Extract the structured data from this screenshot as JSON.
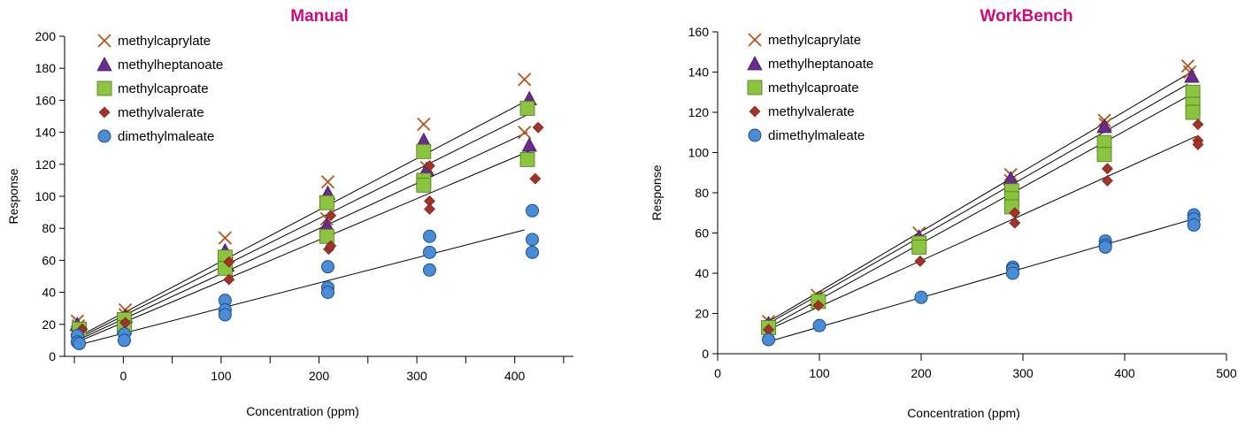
{
  "chart_data": [
    {
      "type": "scatter",
      "title": "Manual",
      "xlabel": "Concentration (ppm)",
      "ylabel": "Response",
      "xlim": [
        -60,
        460
      ],
      "ylim": [
        0,
        200
      ],
      "xticks": [
        0,
        100,
        200,
        300,
        400
      ],
      "yticks": [
        0,
        20,
        40,
        60,
        80,
        100,
        120,
        140,
        160,
        180,
        200
      ],
      "grid": false,
      "legend": "top-left",
      "series": [
        {
          "name": "methylcaprylate",
          "marker": "x",
          "color": "#b5541c",
          "points": [
            [
              -47,
              22
            ],
            [
              -46,
              19
            ],
            [
              2,
              29
            ],
            [
              2,
              26
            ],
            [
              104,
              74
            ],
            [
              106,
              58
            ],
            [
              209,
              109
            ],
            [
              208,
              86
            ],
            [
              307,
              145
            ],
            [
              310,
              118
            ],
            [
              410,
              173
            ],
            [
              410,
              140
            ]
          ]
        },
        {
          "name": "methylheptanoate",
          "marker": "triangle",
          "color": "#6a2d8f",
          "points": [
            [
              -47,
              20
            ],
            [
              2,
              25
            ],
            [
              104,
              66
            ],
            [
              106,
              57
            ],
            [
              209,
              102
            ],
            [
              208,
              82
            ],
            [
              307,
              135
            ],
            [
              310,
              117
            ],
            [
              415,
              161
            ],
            [
              415,
              132
            ]
          ]
        },
        {
          "name": "methylcaproate",
          "marker": "square",
          "color": "#8cc43f",
          "points": [
            [
              -45,
              17
            ],
            [
              1,
              23
            ],
            [
              1,
              18
            ],
            [
              104,
              62
            ],
            [
              104,
              55
            ],
            [
              208,
              96
            ],
            [
              208,
              75
            ],
            [
              307,
              128
            ],
            [
              307,
              110
            ],
            [
              307,
              107
            ],
            [
              413,
              155
            ],
            [
              413,
              123
            ]
          ]
        },
        {
          "name": "methylvalerate",
          "marker": "diamond",
          "color": "#a33228",
          "points": [
            [
              -42,
              17
            ],
            [
              2,
              21
            ],
            [
              108,
              59
            ],
            [
              108,
              48
            ],
            [
              212,
              88
            ],
            [
              210,
              67
            ],
            [
              212,
              69
            ],
            [
              313,
              119
            ],
            [
              313,
              97
            ],
            [
              313,
              92
            ],
            [
              424,
              143
            ],
            [
              421,
              111
            ]
          ]
        },
        {
          "name": "dimethylmaleate",
          "marker": "circle",
          "color": "#4a8dd6",
          "points": [
            [
              -47,
              13
            ],
            [
              -47,
              9
            ],
            [
              -45,
              8
            ],
            [
              1,
              14
            ],
            [
              1,
              10
            ],
            [
              104,
              35
            ],
            [
              104,
              29
            ],
            [
              104,
              26
            ],
            [
              209,
              56
            ],
            [
              209,
              43
            ],
            [
              209,
              40
            ],
            [
              313,
              75
            ],
            [
              313,
              65
            ],
            [
              313,
              54
            ],
            [
              418,
              91
            ],
            [
              418,
              73
            ],
            [
              418,
              65
            ]
          ]
        }
      ],
      "trendlines": [
        {
          "series": "methylcaprylate",
          "from": [
            -47,
            12
          ],
          "to": [
            410,
            159
          ]
        },
        {
          "series": "methylheptanoate",
          "from": [
            -47,
            11
          ],
          "to": [
            413,
            151
          ]
        },
        {
          "series": "methylcaproate",
          "from": [
            -47,
            10
          ],
          "to": [
            413,
            140
          ]
        },
        {
          "series": "methylvalerate",
          "from": [
            -47,
            9
          ],
          "to": [
            418,
            129
          ]
        },
        {
          "series": "dimethylmaleate",
          "from": [
            -47,
            7
          ],
          "to": [
            410,
            79
          ]
        }
      ]
    },
    {
      "type": "scatter",
      "title": "WorkBench",
      "xlabel": "Concentration (ppm)",
      "ylabel": "Response",
      "xlim": [
        0,
        500
      ],
      "ylim": [
        0,
        160
      ],
      "xticks": [
        0,
        100,
        200,
        300,
        400,
        500
      ],
      "yticks": [
        0,
        20,
        40,
        60,
        80,
        100,
        120,
        140,
        160
      ],
      "grid": false,
      "legend": "top-left",
      "series": [
        {
          "name": "methylcaprylate",
          "marker": "x",
          "color": "#b5541c",
          "points": [
            [
              50,
              16
            ],
            [
              98,
              29
            ],
            [
              198,
              60
            ],
            [
              288,
              89
            ],
            [
              288,
              86
            ],
            [
              380,
              116
            ],
            [
              381,
              114
            ],
            [
              462,
              143
            ],
            [
              464,
              140
            ]
          ]
        },
        {
          "name": "methylheptanoate",
          "marker": "triangle",
          "color": "#6a2d8f",
          "points": [
            [
              50,
              15
            ],
            [
              98,
              27
            ],
            [
              198,
              58
            ],
            [
              288,
              87
            ],
            [
              380,
              113
            ],
            [
              466,
              138
            ]
          ]
        },
        {
          "name": "methylcaproate",
          "marker": "square",
          "color": "#8cc43f",
          "points": [
            [
              50,
              13
            ],
            [
              99,
              26
            ],
            [
              198,
              55
            ],
            [
              198,
              53
            ],
            [
              289,
              81
            ],
            [
              289,
              77
            ],
            [
              289,
              73
            ],
            [
              380,
              105
            ],
            [
              380,
              99
            ],
            [
              467,
              130
            ],
            [
              467,
              124
            ],
            [
              467,
              120
            ]
          ]
        },
        {
          "name": "methylvalerate",
          "marker": "diamond",
          "color": "#a33228",
          "points": [
            [
              50,
              12
            ],
            [
              99,
              24
            ],
            [
              199,
              46
            ],
            [
              292,
              70
            ],
            [
              292,
              65
            ],
            [
              383,
              92
            ],
            [
              383,
              86
            ],
            [
              472,
              114
            ],
            [
              472,
              106
            ],
            [
              472,
              104
            ]
          ]
        },
        {
          "name": "dimethylmaleate",
          "marker": "circle",
          "color": "#4a8dd6",
          "points": [
            [
              50,
              7
            ],
            [
              100,
              14
            ],
            [
              200,
              28
            ],
            [
              290,
              43
            ],
            [
              290,
              42
            ],
            [
              290,
              40
            ],
            [
              381,
              56
            ],
            [
              381,
              54
            ],
            [
              381,
              53
            ],
            [
              468,
              69
            ],
            [
              468,
              67
            ],
            [
              468,
              64
            ]
          ]
        }
      ],
      "trendlines": [
        {
          "series": "methylcaprylate",
          "from": [
            50,
            16
          ],
          "to": [
            462,
            139
          ]
        },
        {
          "series": "methylheptanoate",
          "from": [
            50,
            15
          ],
          "to": [
            462,
            134
          ]
        },
        {
          "series": "methylcaproate",
          "from": [
            50,
            13
          ],
          "to": [
            462,
            128
          ]
        },
        {
          "series": "methylvalerate",
          "from": [
            50,
            12
          ],
          "to": [
            470,
            108
          ]
        },
        {
          "series": "dimethylmaleate",
          "from": [
            50,
            6
          ],
          "to": [
            468,
            67
          ]
        }
      ]
    }
  ]
}
